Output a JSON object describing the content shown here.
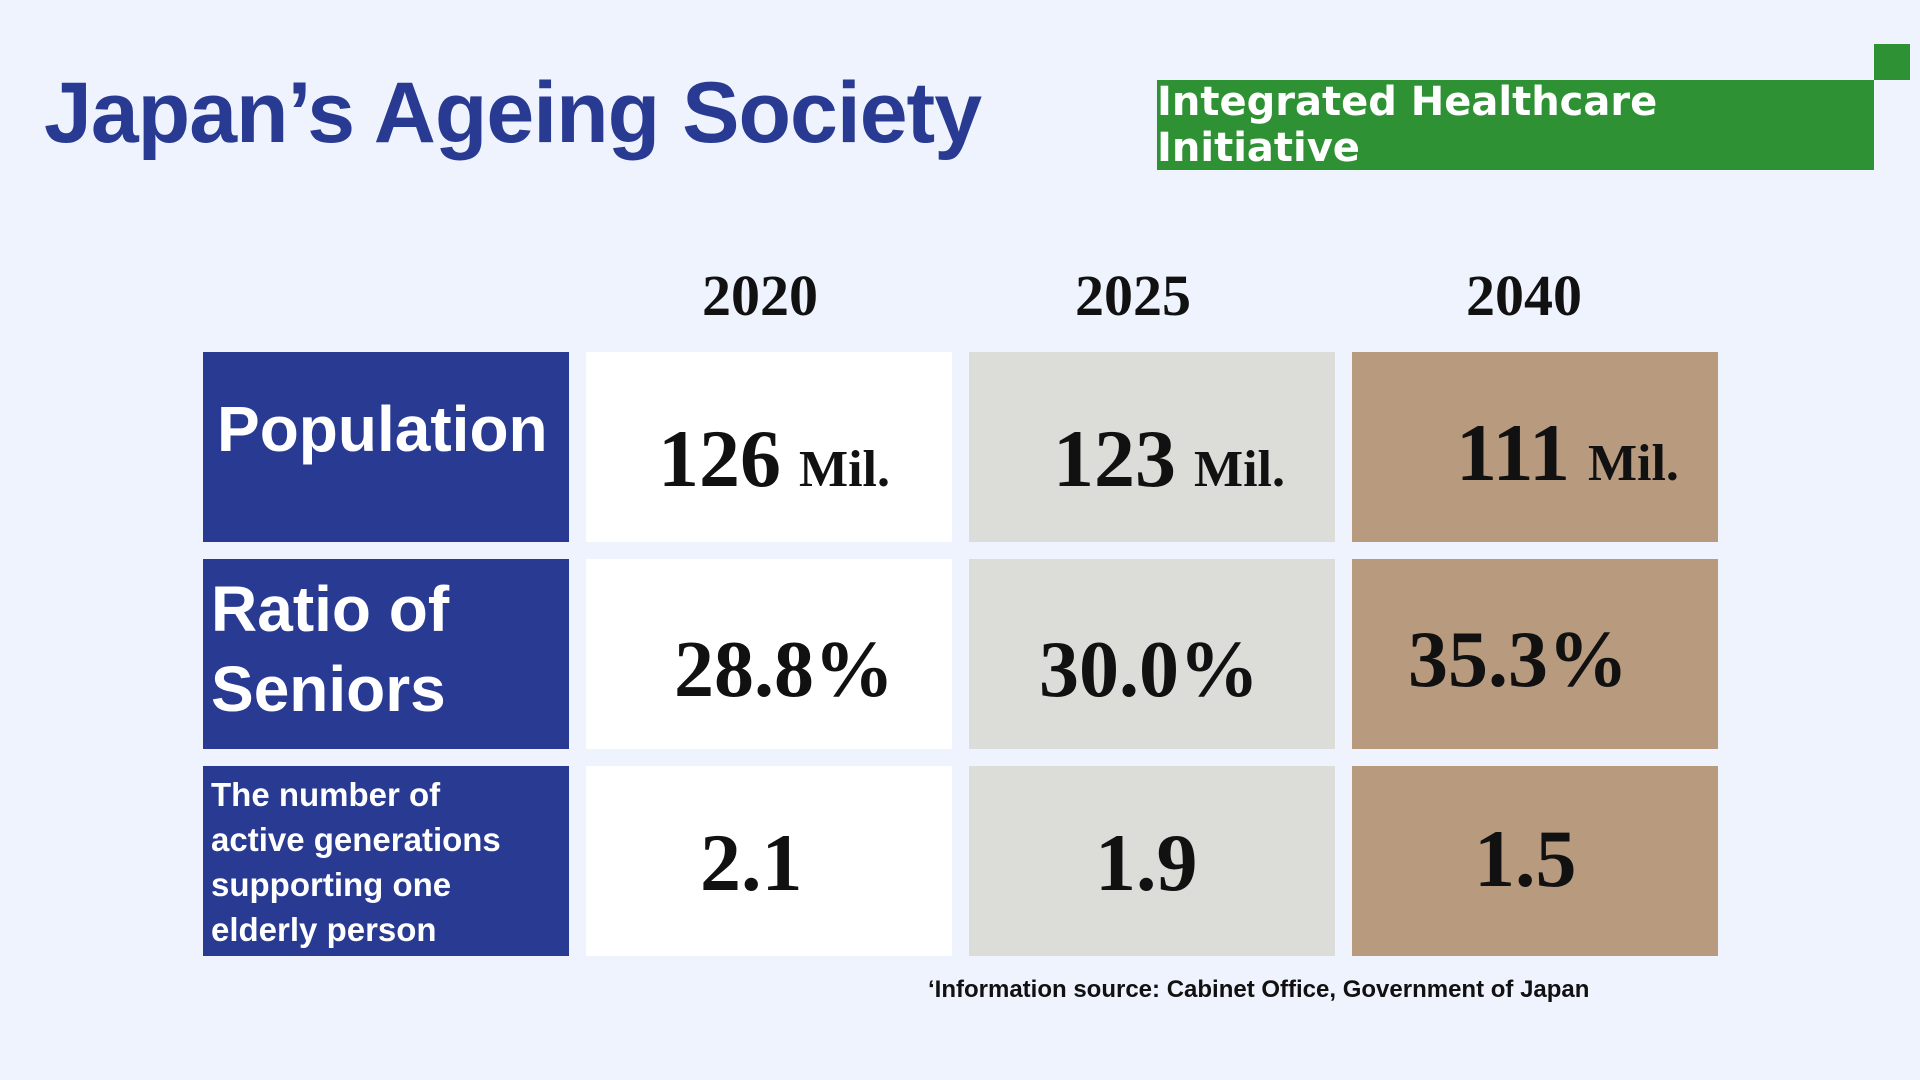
{
  "header": {
    "title": "Japan’s Ageing Society",
    "badge": "Integrated Healthcare Initiative"
  },
  "table": {
    "years": [
      "2020",
      "2025",
      "2040"
    ],
    "rows": [
      {
        "label": "Population",
        "values": [
          {
            "number": "126",
            "unit": "Mil."
          },
          {
            "number": "123",
            "unit": "Mil."
          },
          {
            "number": "111",
            "unit": "Mil."
          }
        ]
      },
      {
        "label_line1": "Ratio of",
        "label_line2": "Seniors",
        "values": [
          "28.8%",
          "30.0%",
          "35.3%"
        ]
      },
      {
        "label_lines": [
          "The number of",
          "active generations",
          "supporting one",
          "elderly person"
        ],
        "values": [
          "2.1",
          "1.9",
          "1.5"
        ]
      }
    ]
  },
  "footer": {
    "source": "‘Information source: Cabinet Office, Government of Japan"
  },
  "colors": {
    "background": "#eff3fe",
    "navy": "#283a92",
    "green": "#2e9234",
    "col_2020": "#ffffff",
    "col_2025": "#dcdcd9",
    "col_2040": "#b89a7e"
  }
}
